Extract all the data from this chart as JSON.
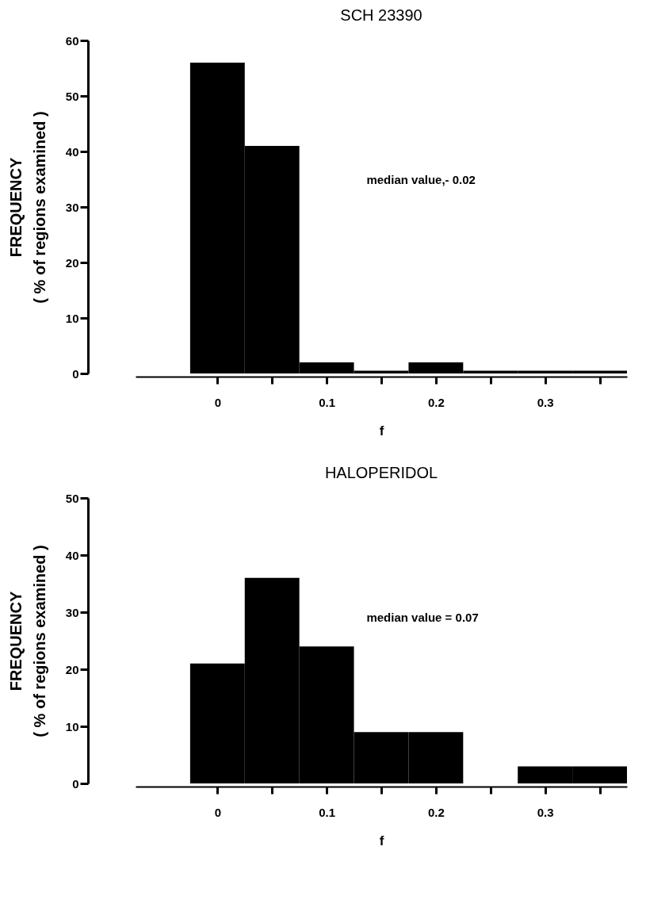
{
  "chart_data": [
    {
      "type": "histogram",
      "title": "SCH 23390",
      "xlabel": "f",
      "ylabel": "FREQUENCY\n( % of regions examined )",
      "color": "#000000",
      "bins": [
        -0.025,
        0.025,
        0.075,
        0.125,
        0.175,
        0.225,
        0.275,
        0.325,
        0.375
      ],
      "values": [
        56,
        41,
        2,
        0.5,
        2,
        0.5,
        0.5,
        0.5
      ],
      "xlim": [
        -0.075,
        0.375
      ],
      "xticks": [
        0,
        {
          "value": 0.05,
          "label": null
        },
        0.1,
        {
          "value": 0.15,
          "label": null
        },
        0.2,
        {
          "value": 0.25,
          "label": null
        },
        0.3,
        {
          "value": 0.35,
          "label": null
        }
      ],
      "ylim": [
        0,
        60
      ],
      "yticks": [
        0,
        10,
        20,
        30,
        40,
        50,
        60
      ],
      "grid": false,
      "annotations": [
        "median value,- 0.02"
      ]
    },
    {
      "type": "histogram",
      "title": "HALOPERIDOL",
      "xlabel": "f",
      "ylabel": "FREQUENCY\n( % of regions examined )",
      "color": "#000000",
      "bins": [
        -0.025,
        0.025,
        0.075,
        0.125,
        0.175,
        0.225,
        0.275,
        0.325,
        0.375
      ],
      "values": [
        21,
        36,
        24,
        9,
        9,
        0,
        3,
        3
      ],
      "xlim": [
        -0.075,
        0.375
      ],
      "xticks": [
        0,
        {
          "value": 0.05,
          "label": null
        },
        0.1,
        {
          "value": 0.15,
          "label": null
        },
        0.2,
        {
          "value": 0.25,
          "label": null
        },
        0.3,
        {
          "value": 0.35,
          "label": null
        }
      ],
      "ylim": [
        0,
        50
      ],
      "yticks": [
        0,
        10,
        20,
        30,
        40,
        50
      ],
      "grid": false,
      "annotations": [
        "median value = 0.07"
      ]
    }
  ]
}
